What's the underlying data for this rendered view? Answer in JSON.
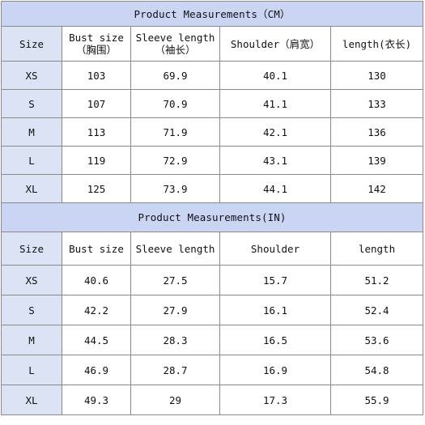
{
  "cm_table": {
    "title": "Product Measurements（CM）",
    "headers": [
      {
        "line1": "Size",
        "line2": ""
      },
      {
        "line1": "Bust size",
        "line2": "（胸围）"
      },
      {
        "line1": "Sleeve length",
        "line2": "（袖长）"
      },
      {
        "line1": "Shoulder（肩宽）",
        "line2": ""
      },
      {
        "line1": "length(衣长)",
        "line2": ""
      }
    ],
    "rows": [
      {
        "size": "XS",
        "bust": "103",
        "sleeve": "69.9",
        "shoulder": "40.1",
        "length": "130"
      },
      {
        "size": "S",
        "bust": "107",
        "sleeve": "70.9",
        "shoulder": "41.1",
        "length": "133"
      },
      {
        "size": "M",
        "bust": "113",
        "sleeve": "71.9",
        "shoulder": "42.1",
        "length": "136"
      },
      {
        "size": "L",
        "bust": "119",
        "sleeve": "72.9",
        "shoulder": "43.1",
        "length": "139"
      },
      {
        "size": "XL",
        "bust": "125",
        "sleeve": "73.9",
        "shoulder": "44.1",
        "length": "142"
      }
    ]
  },
  "in_table": {
    "title": "Product Measurements(IN)",
    "headers": [
      {
        "line1": "Size"
      },
      {
        "line1": "Bust size"
      },
      {
        "line1": "Sleeve length"
      },
      {
        "line1": "Shoulder"
      },
      {
        "line1": "length"
      }
    ],
    "rows": [
      {
        "size": "XS",
        "bust": "40.6",
        "sleeve": "27.5",
        "shoulder": "15.7",
        "length": "51.2"
      },
      {
        "size": "S",
        "bust": "42.2",
        "sleeve": "27.9",
        "shoulder": "16.1",
        "length": "52.4"
      },
      {
        "size": "M",
        "bust": "44.5",
        "sleeve": "28.3",
        "shoulder": "16.5",
        "length": "53.6"
      },
      {
        "size": "L",
        "bust": "46.9",
        "sleeve": "28.7",
        "shoulder": "16.9",
        "length": "54.8"
      },
      {
        "size": "XL",
        "bust": "49.3",
        "sleeve": "29",
        "shoulder": "17.3",
        "length": "55.9"
      }
    ]
  },
  "colors": {
    "title_band": "#c9d5f2",
    "label_column": "#dbe3f5",
    "border": "#8a8a8a",
    "cell": "#ffffff"
  }
}
